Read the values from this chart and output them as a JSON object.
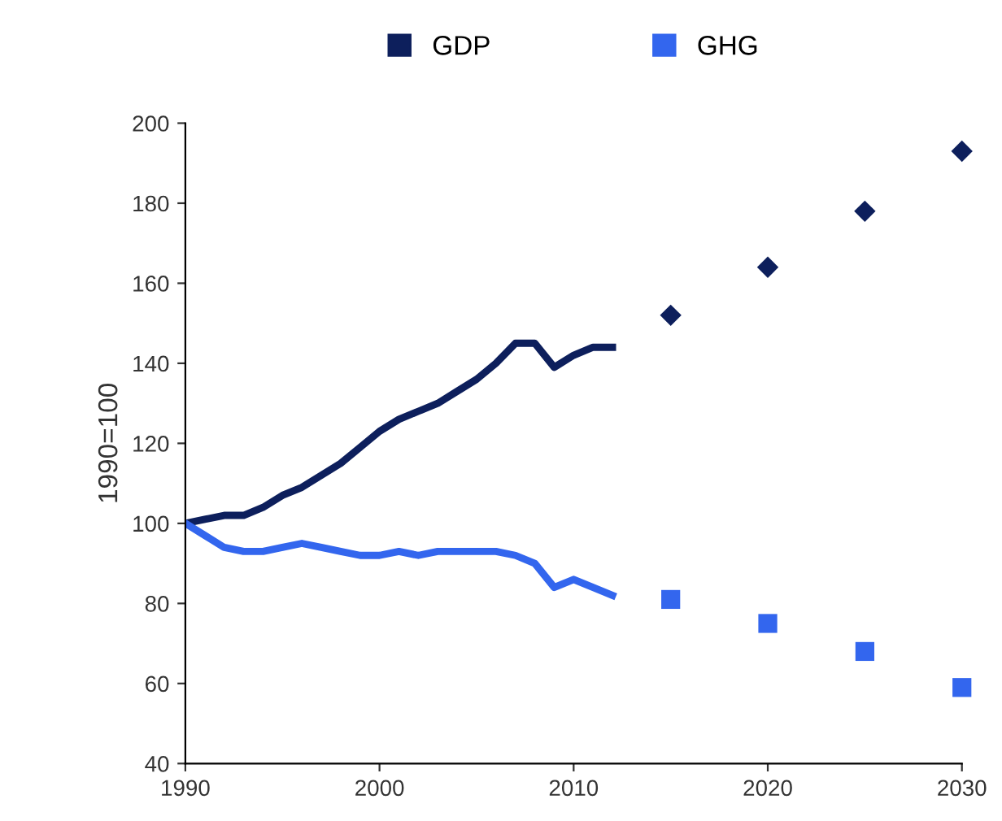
{
  "chart_data": {
    "type": "line",
    "ylabel": "1990=100",
    "xlim": [
      1990,
      2030
    ],
    "ylim": [
      40,
      200
    ],
    "xticks": [
      1990,
      2000,
      2010,
      2020,
      2030
    ],
    "yticks": [
      40,
      60,
      80,
      100,
      120,
      140,
      160,
      180,
      200
    ],
    "grid": false,
    "legend": "top",
    "series": [
      {
        "name": "GDP",
        "color": "#0d1f5c",
        "x": [
          1990,
          1991,
          1992,
          1993,
          1994,
          1995,
          1996,
          1997,
          1998,
          1999,
          2000,
          2001,
          2002,
          2003,
          2004,
          2005,
          2006,
          2007,
          2008,
          2009,
          2010,
          2011,
          2012
        ],
        "values": [
          100,
          101,
          102,
          102,
          104,
          107,
          109,
          112,
          115,
          119,
          123,
          126,
          128,
          130,
          133,
          136,
          140,
          145,
          145,
          139,
          142,
          144,
          144
        ]
      },
      {
        "name": "GHG",
        "color": "#3366ee",
        "x": [
          1990,
          1991,
          1992,
          1993,
          1994,
          1995,
          1996,
          1997,
          1998,
          1999,
          2000,
          2001,
          2002,
          2003,
          2004,
          2005,
          2006,
          2007,
          2008,
          2009,
          2010,
          2011,
          2012
        ],
        "values": [
          100,
          97,
          94,
          93,
          93,
          94,
          95,
          94,
          93,
          92,
          92,
          93,
          92,
          93,
          93,
          93,
          93,
          92,
          90,
          84,
          86,
          84,
          82
        ]
      },
      {
        "type": "scatter",
        "marker": "diamond",
        "color": "#0d1f5c",
        "x": [
          2015,
          2020,
          2025,
          2030
        ],
        "values": [
          152,
          164,
          178,
          193
        ]
      },
      {
        "type": "scatter",
        "marker": "square",
        "color": "#3366ee",
        "x": [
          2015,
          2020,
          2025,
          2030
        ],
        "values": [
          81,
          75,
          68,
          59
        ]
      }
    ]
  }
}
